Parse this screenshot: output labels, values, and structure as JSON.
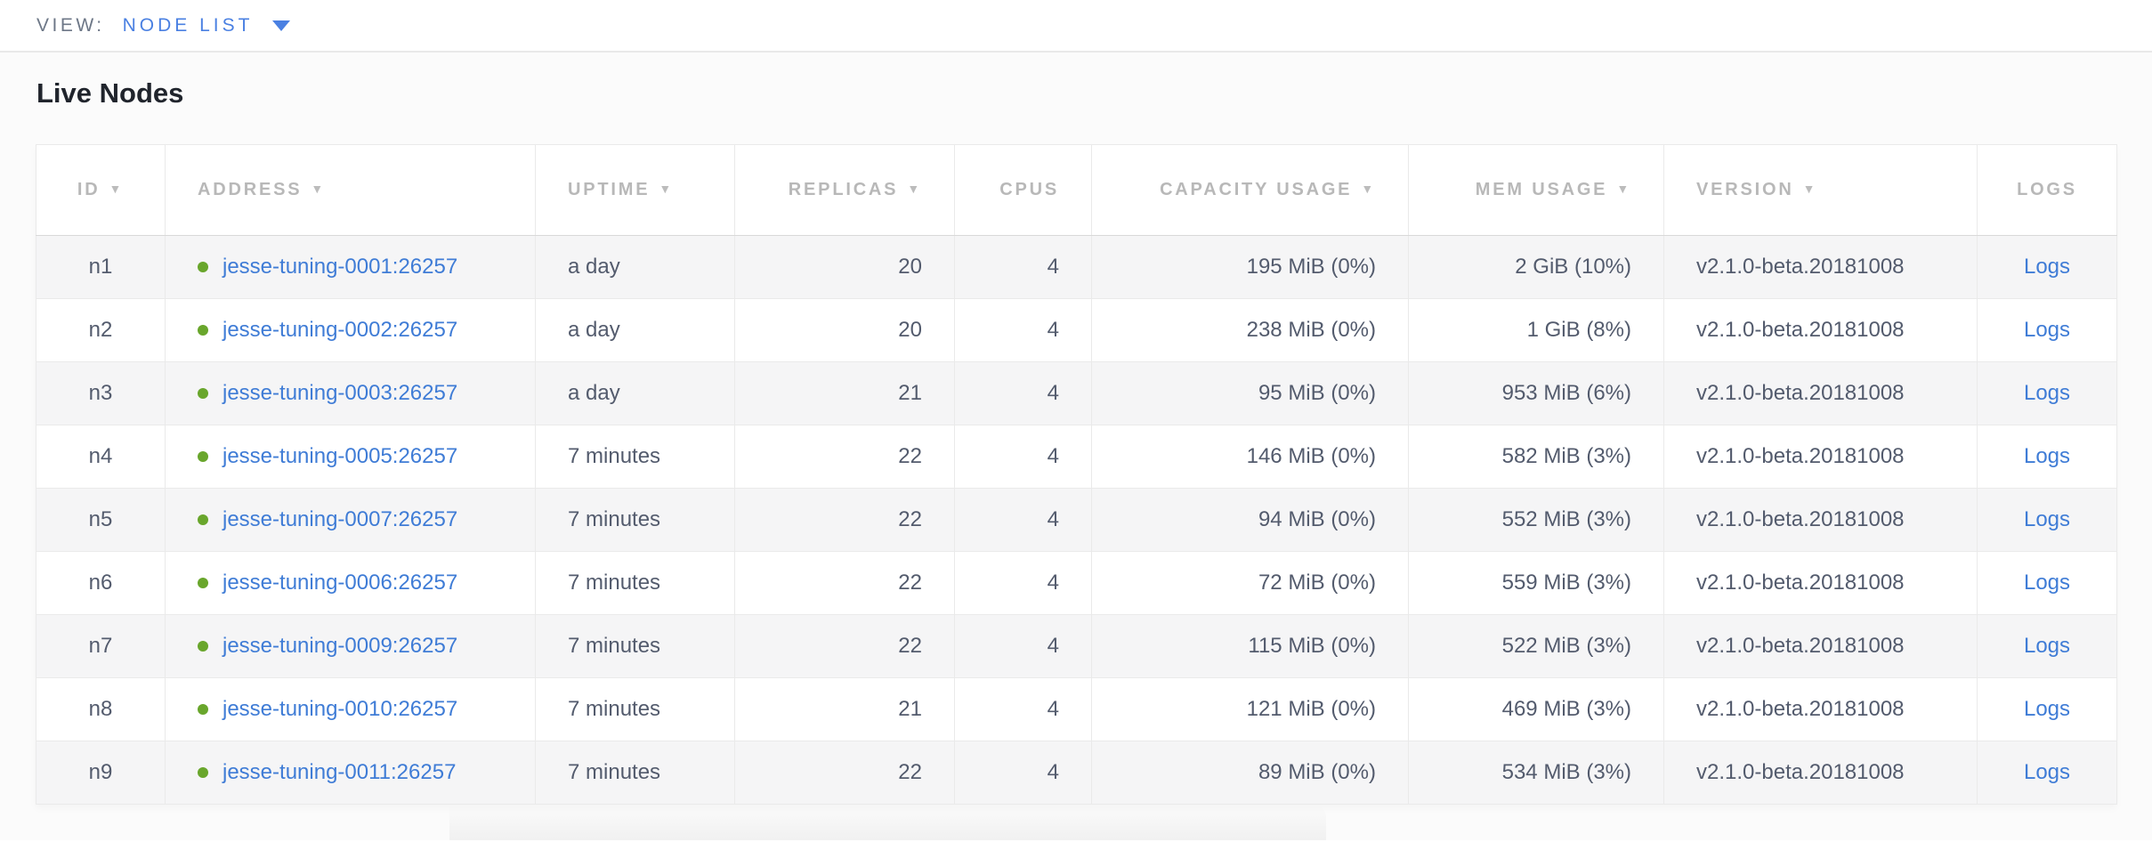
{
  "view_bar": {
    "label": "VIEW:",
    "selected": "NODE LIST"
  },
  "page": {
    "title": "Live Nodes"
  },
  "table": {
    "sort_icon": "▼",
    "columns": [
      {
        "key": "id",
        "label": "ID",
        "sortable": true,
        "align": "center"
      },
      {
        "key": "address",
        "label": "ADDRESS",
        "sortable": true,
        "align": "left"
      },
      {
        "key": "uptime",
        "label": "UPTIME",
        "sortable": true,
        "align": "left"
      },
      {
        "key": "replicas",
        "label": "REPLICAS",
        "sortable": true,
        "align": "right"
      },
      {
        "key": "cpus",
        "label": "CPUS",
        "sortable": false,
        "align": "right"
      },
      {
        "key": "capacity",
        "label": "CAPACITY USAGE",
        "sortable": true,
        "align": "right"
      },
      {
        "key": "mem",
        "label": "MEM USAGE",
        "sortable": true,
        "align": "right"
      },
      {
        "key": "version",
        "label": "VERSION",
        "sortable": true,
        "align": "left"
      },
      {
        "key": "logs",
        "label": "LOGS",
        "sortable": false,
        "align": "center"
      }
    ],
    "rows": [
      {
        "id": "n1",
        "status": "live",
        "address": "jesse-tuning-0001:26257",
        "uptime": "a day",
        "replicas": "20",
        "cpus": "4",
        "capacity": "195 MiB (0%)",
        "mem": "2 GiB (10%)",
        "version": "v2.1.0-beta.20181008",
        "logs": "Logs"
      },
      {
        "id": "n2",
        "status": "live",
        "address": "jesse-tuning-0002:26257",
        "uptime": "a day",
        "replicas": "20",
        "cpus": "4",
        "capacity": "238 MiB (0%)",
        "mem": "1 GiB (8%)",
        "version": "v2.1.0-beta.20181008",
        "logs": "Logs"
      },
      {
        "id": "n3",
        "status": "live",
        "address": "jesse-tuning-0003:26257",
        "uptime": "a day",
        "replicas": "21",
        "cpus": "4",
        "capacity": "95 MiB (0%)",
        "mem": "953 MiB (6%)",
        "version": "v2.1.0-beta.20181008",
        "logs": "Logs"
      },
      {
        "id": "n4",
        "status": "live",
        "address": "jesse-tuning-0005:26257",
        "uptime": "7 minutes",
        "replicas": "22",
        "cpus": "4",
        "capacity": "146 MiB (0%)",
        "mem": "582 MiB (3%)",
        "version": "v2.1.0-beta.20181008",
        "logs": "Logs"
      },
      {
        "id": "n5",
        "status": "live",
        "address": "jesse-tuning-0007:26257",
        "uptime": "7 minutes",
        "replicas": "22",
        "cpus": "4",
        "capacity": "94 MiB (0%)",
        "mem": "552 MiB (3%)",
        "version": "v2.1.0-beta.20181008",
        "logs": "Logs"
      },
      {
        "id": "n6",
        "status": "live",
        "address": "jesse-tuning-0006:26257",
        "uptime": "7 minutes",
        "replicas": "22",
        "cpus": "4",
        "capacity": "72 MiB (0%)",
        "mem": "559 MiB (3%)",
        "version": "v2.1.0-beta.20181008",
        "logs": "Logs"
      },
      {
        "id": "n7",
        "status": "live",
        "address": "jesse-tuning-0009:26257",
        "uptime": "7 minutes",
        "replicas": "22",
        "cpus": "4",
        "capacity": "115 MiB (0%)",
        "mem": "522 MiB (3%)",
        "version": "v2.1.0-beta.20181008",
        "logs": "Logs"
      },
      {
        "id": "n8",
        "status": "live",
        "address": "jesse-tuning-0010:26257",
        "uptime": "7 minutes",
        "replicas": "21",
        "cpus": "4",
        "capacity": "121 MiB (0%)",
        "mem": "469 MiB (3%)",
        "version": "v2.1.0-beta.20181008",
        "logs": "Logs"
      },
      {
        "id": "n9",
        "status": "live",
        "address": "jesse-tuning-0011:26257",
        "uptime": "7 minutes",
        "replicas": "22",
        "cpus": "4",
        "capacity": "89 MiB (0%)",
        "mem": "534 MiB (3%)",
        "version": "v2.1.0-beta.20181008",
        "logs": "Logs"
      }
    ]
  },
  "colors": {
    "link_blue": "#3f7cd6",
    "dropdown_blue": "#4a80e2",
    "live_dot_green": "#69a62c",
    "header_text_gray": "#b8b8b8",
    "body_text": "#535b6d",
    "row_stripe": "#f5f5f6"
  }
}
